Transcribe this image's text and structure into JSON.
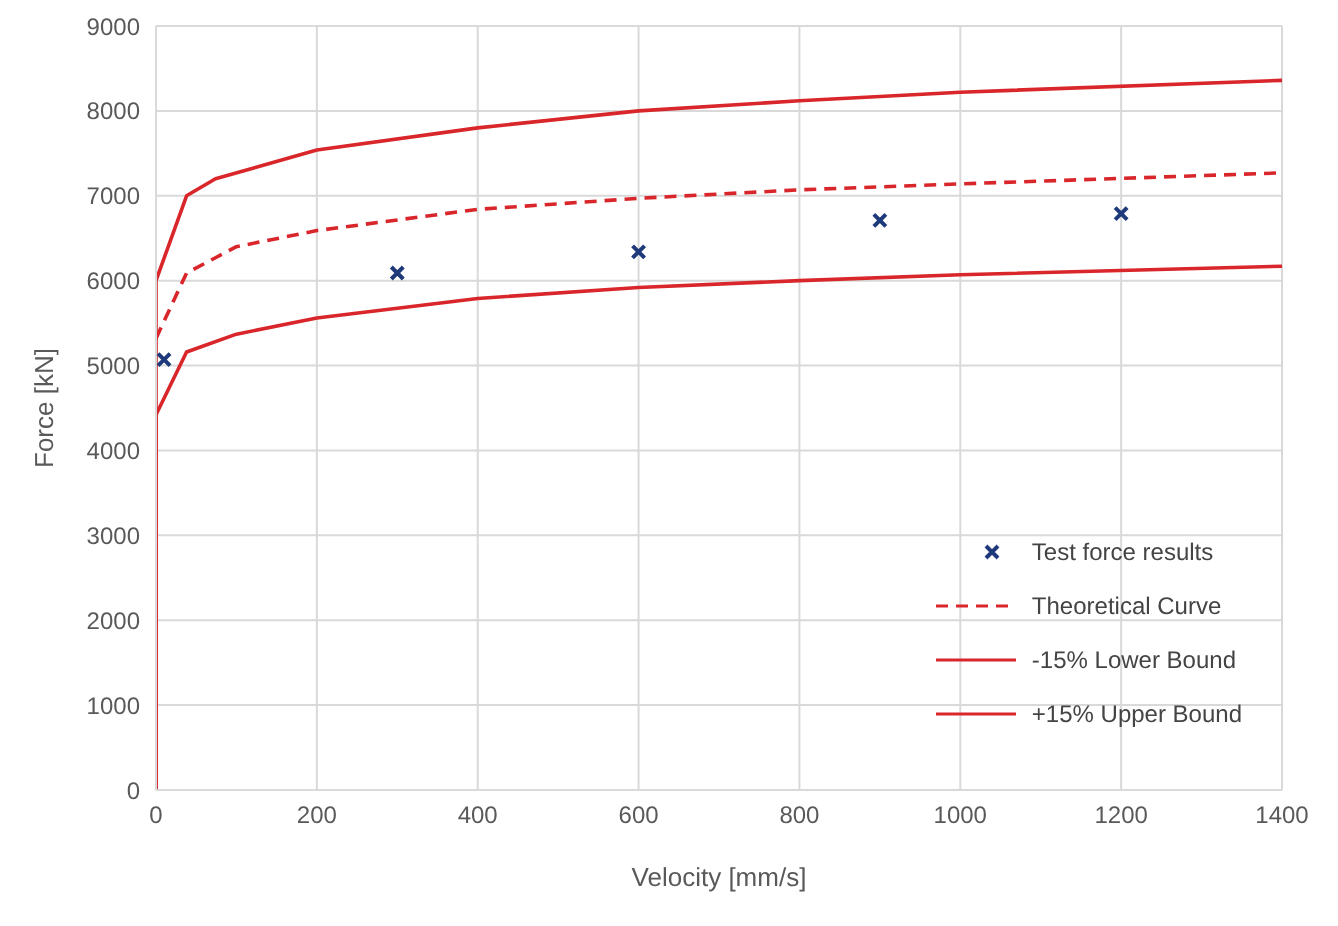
{
  "chart_data": {
    "type": "line",
    "xlabel": "Velocity [mm/s]",
    "ylabel": "Force [kN]",
    "xlim": [
      0,
      1400
    ],
    "xticks": [
      0,
      200,
      400,
      600,
      800,
      1000,
      1200,
      1400
    ],
    "ylim": [
      0,
      9000
    ],
    "yticks": [
      0,
      1000,
      2000,
      3000,
      4000,
      5000,
      6000,
      7000,
      8000,
      9000
    ],
    "grid": true,
    "legend": "bottom right",
    "series": [
      {
        "name": "Test force results",
        "type": "scatter",
        "marker": "cross",
        "color": "#1f3a7a",
        "x": [
          10,
          300,
          600,
          900,
          1200
        ],
        "values": [
          5070,
          6090,
          6340,
          6710,
          6790
        ]
      },
      {
        "name": "Theoretical Curve",
        "line_style": "dashed",
        "marker": "none",
        "color": "#d9262b",
        "x": [
          0,
          38,
          100,
          200,
          400,
          600,
          800,
          1000,
          1400
        ],
        "values": [
          5320,
          6090,
          6400,
          6590,
          6840,
          6970,
          7070,
          7140,
          7270
        ]
      },
      {
        "name": "-15% Lower Bound",
        "line_style": "solid",
        "marker": "none",
        "color": "#d9262b",
        "x": [
          0,
          0,
          38,
          100,
          200,
          400,
          600,
          800,
          1000,
          1400
        ],
        "values": [
          0,
          4420,
          5160,
          5370,
          5560,
          5790,
          5920,
          6000,
          6070,
          6170
        ]
      },
      {
        "name": "+15% Upper Bound",
        "line_style": "solid",
        "marker": "none",
        "color": "#d9262b",
        "x": [
          0,
          0,
          38,
          74,
          200,
          400,
          600,
          800,
          1000,
          1400
        ],
        "values": [
          0,
          6000,
          7000,
          7200,
          7540,
          7800,
          8000,
          8120,
          8220,
          8360
        ]
      }
    ]
  }
}
